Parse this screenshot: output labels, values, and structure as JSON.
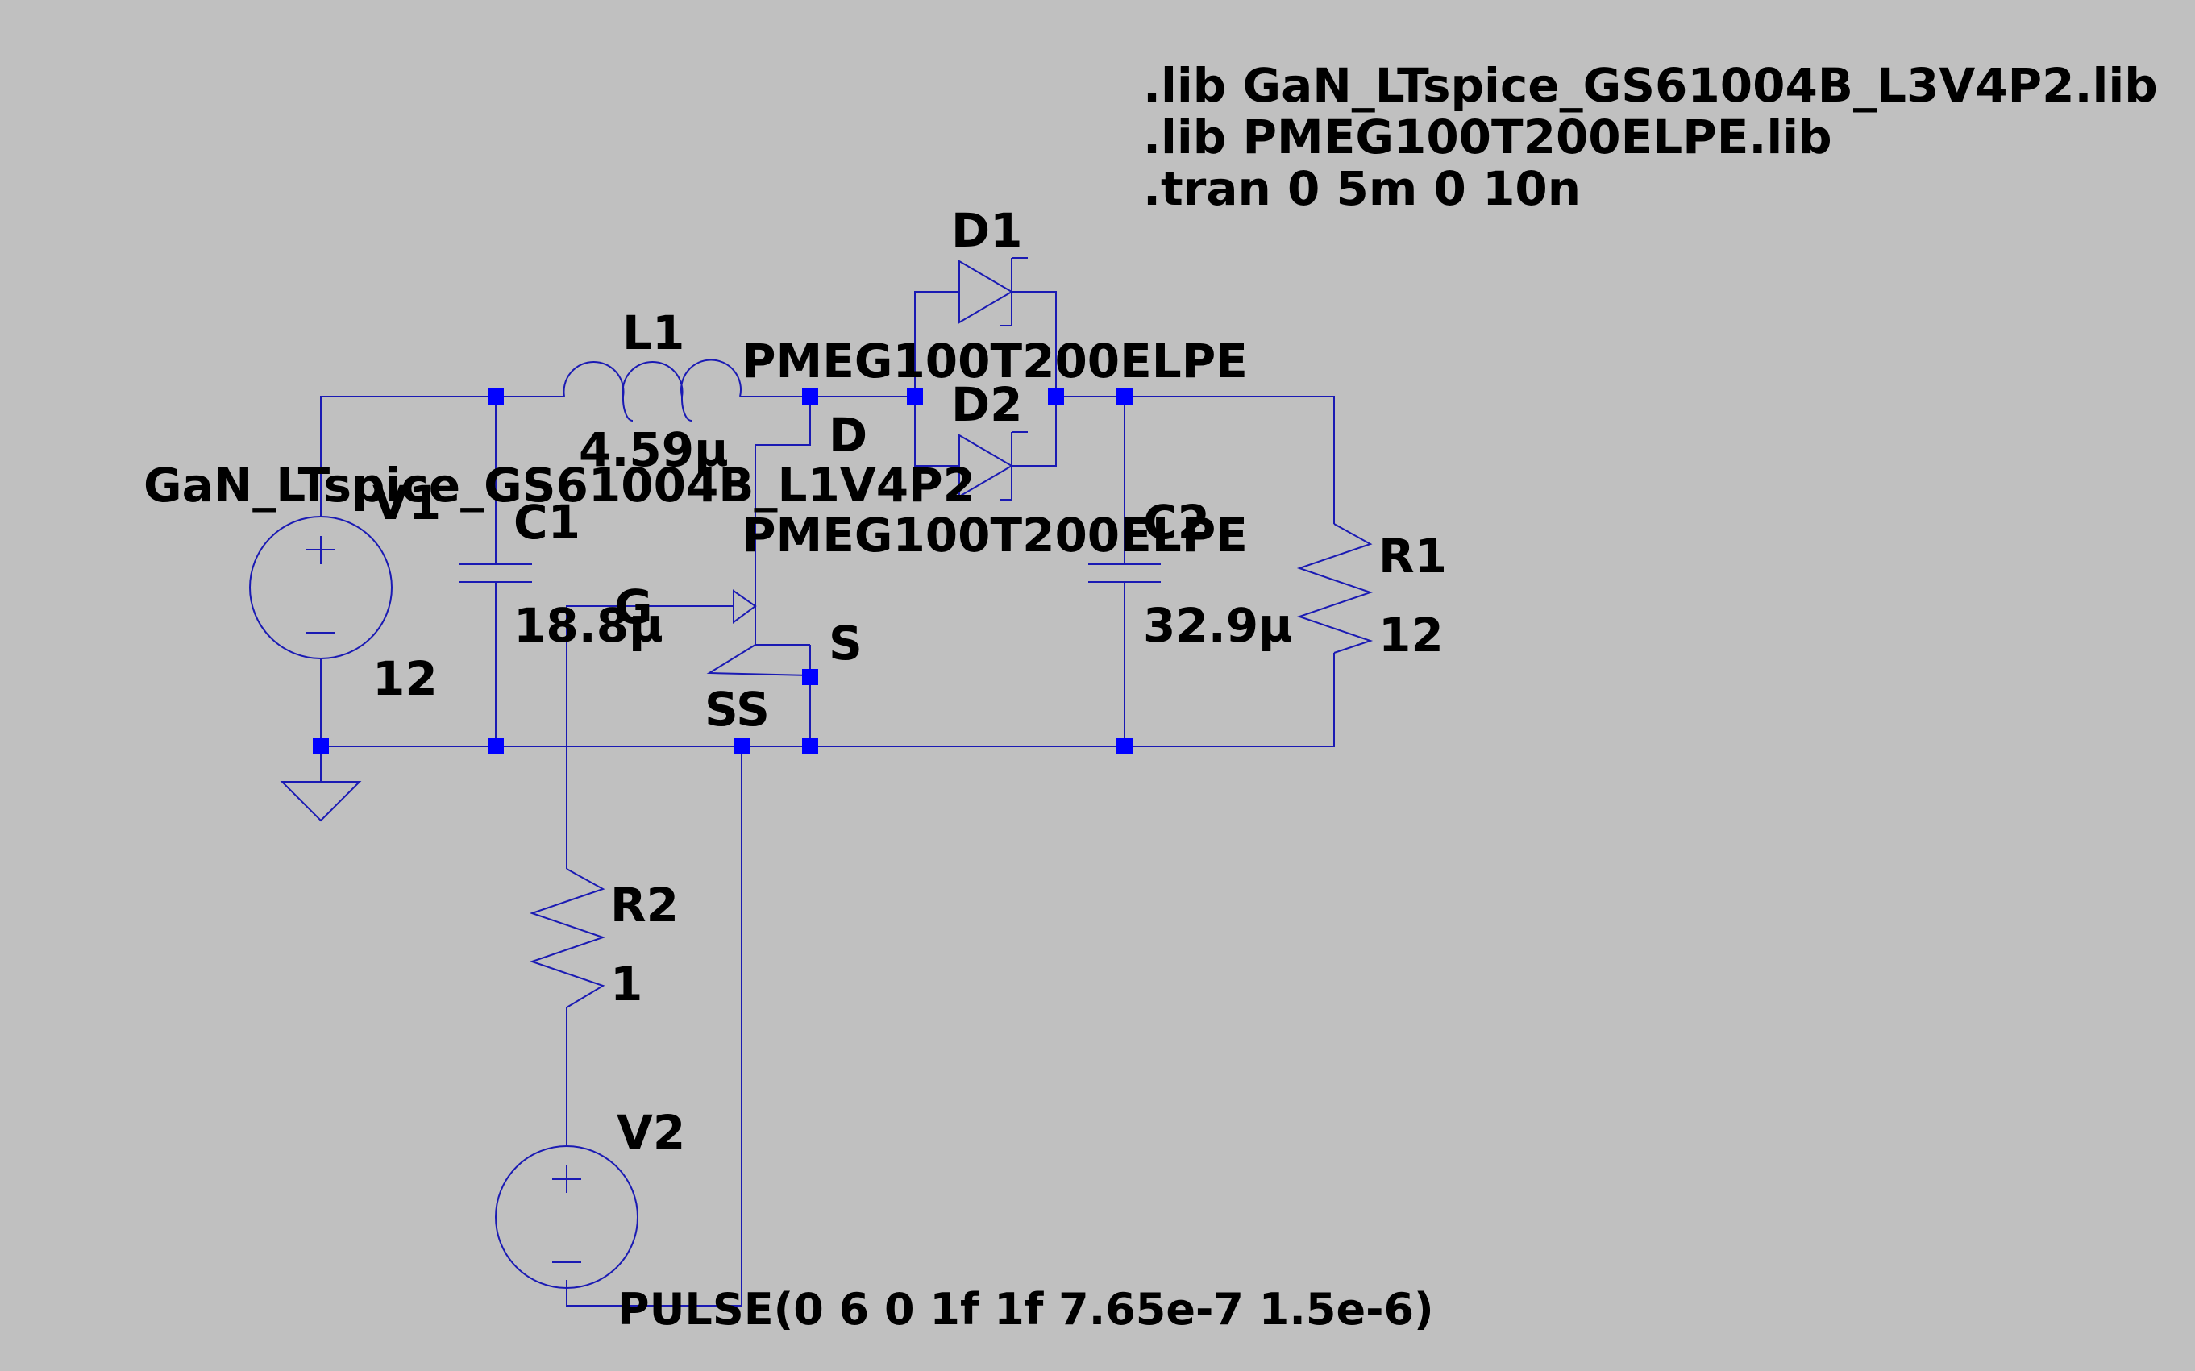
{
  "canvas": {
    "background": "#c0c0c0",
    "wire_color": "#1a1ab3",
    "node_color": "#0000ff"
  },
  "directives": [
    ".lib GaN_LTspice_GS61004B_L3V4P2.lib",
    ".lib PMEG100T200ELPE.lib",
    ".tran 0 5m 0 10n"
  ],
  "components": {
    "L1": {
      "ref": "L1",
      "value": "4.59µ"
    },
    "D1": {
      "ref": "D1",
      "model": "PMEG100T200ELPE"
    },
    "D2": {
      "ref": "D2",
      "model": "PMEG100T200ELPE"
    },
    "V1": {
      "ref": "V1",
      "value": "12"
    },
    "C1": {
      "ref": "C1",
      "value": "18.8µ"
    },
    "C2": {
      "ref": "C2",
      "value": "32.9µ"
    },
    "R1": {
      "ref": "R1",
      "value": "12"
    },
    "R2": {
      "ref": "R2",
      "value": "1"
    },
    "V2": {
      "ref": "V2",
      "value": "PULSE(0 6 0 1f 1f 7.65e-7 1.5e-6)"
    },
    "U1": {
      "model": "GaN_LTspice_GS61004B_L1V4P2",
      "pin_d": "D",
      "pin_g": "G",
      "pin_s": "S",
      "pin_ss": "SS"
    }
  },
  "icons": {
    "ground": "ground-icon",
    "inductor": "inductor-icon",
    "diode": "diode-icon",
    "capacitor": "capacitor-icon",
    "resistor": "resistor-icon",
    "voltage_source": "voltage-source-icon",
    "transistor": "gan-fet-icon"
  }
}
